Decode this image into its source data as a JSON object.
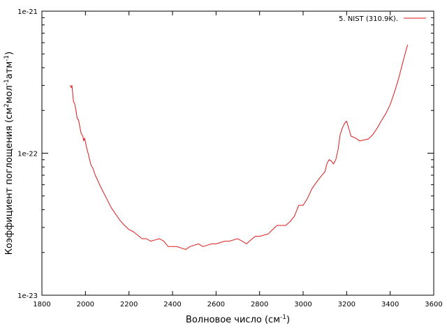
{
  "chart_data": {
    "type": "line",
    "title": "",
    "xlabel_main": "Волновое число (см",
    "xlabel_sup": "-1",
    "xlabel_end": ")",
    "ylabel_main": "Коэффициент поглощения (см",
    "ylabel_sup1": "2",
    "ylabel_mid": "мол",
    "ylabel_sup2": "-1",
    "ylabel_mid2": "атм",
    "ylabel_sup3": "-1",
    "ylabel_end": ")",
    "xlim": [
      1800,
      3600
    ],
    "ylim": [
      1e-23,
      1e-21
    ],
    "yscale": "log",
    "xticks": [
      1800,
      2000,
      2200,
      2400,
      2600,
      2800,
      3000,
      3200,
      3400,
      3600
    ],
    "yticks": [
      {
        "value": 1e-23,
        "label": "1e-23"
      },
      {
        "value": 1e-22,
        "label": "1e-22"
      },
      {
        "value": 1e-21,
        "label": "1e-21"
      }
    ],
    "grid": false,
    "legend_position": "top-right",
    "series": [
      {
        "name": "5. NIST (310.9K).",
        "color": "#dd1a1a",
        "x": [
          1930,
          1935,
          1938,
          1945,
          1950,
          1958,
          1962,
          1968,
          1972,
          1980,
          1988,
          1992,
          1996,
          2000,
          2005,
          2012,
          2018,
          2025,
          2035,
          2045,
          2055,
          2065,
          2080,
          2100,
          2120,
          2140,
          2160,
          2180,
          2200,
          2220,
          2240,
          2260,
          2280,
          2300,
          2320,
          2340,
          2360,
          2380,
          2400,
          2420,
          2440,
          2460,
          2480,
          2500,
          2520,
          2540,
          2560,
          2580,
          2600,
          2620,
          2640,
          2660,
          2680,
          2700,
          2720,
          2740,
          2760,
          2780,
          2800,
          2820,
          2840,
          2860,
          2880,
          2900,
          2920,
          2940,
          2960,
          2980,
          3000,
          3020,
          3040,
          3060,
          3080,
          3100,
          3110,
          3120,
          3130,
          3140,
          3150,
          3160,
          3170,
          3180,
          3190,
          3200,
          3220,
          3240,
          3260,
          3280,
          3300,
          3320,
          3340,
          3360,
          3380,
          3400,
          3420,
          3440,
          3460,
          3480
        ],
        "y": [
          3e-22,
          2.9e-22,
          3e-22,
          2.3e-22,
          2.25e-22,
          1.95e-22,
          1.75e-22,
          1.72e-22,
          1.6e-22,
          1.38e-22,
          1.32e-22,
          1.22e-22,
          1.28e-22,
          1.2e-22,
          1.1e-22,
          1e-22,
          9.2e-23,
          8.3e-23,
          7.8e-23,
          7e-23,
          6.5e-23,
          6e-23,
          5.4e-23,
          4.7e-23,
          4.1e-23,
          3.7e-23,
          3.35e-23,
          3.1e-23,
          2.9e-23,
          2.8e-23,
          2.65e-23,
          2.5e-23,
          2.5e-23,
          2.4e-23,
          2.45e-23,
          2.5e-23,
          2.4e-23,
          2.2e-23,
          2.2e-23,
          2.2e-23,
          2.15e-23,
          2.1e-23,
          2.2e-23,
          2.25e-23,
          2.3e-23,
          2.2e-23,
          2.25e-23,
          2.3e-23,
          2.3e-23,
          2.35e-23,
          2.4e-23,
          2.4e-23,
          2.45e-23,
          2.5e-23,
          2.4e-23,
          2.3e-23,
          2.45e-23,
          2.6e-23,
          2.6e-23,
          2.65e-23,
          2.7e-23,
          2.9e-23,
          3.1e-23,
          3.1e-23,
          3.1e-23,
          3.3e-23,
          3.6e-23,
          4.3e-23,
          4.3e-23,
          4.8e-23,
          5.6e-23,
          6.2e-23,
          6.8e-23,
          7.4e-23,
          8.5e-23,
          9e-23,
          8.8e-23,
          8.4e-23,
          9e-23,
          1.05e-22,
          1.35e-22,
          1.5e-22,
          1.62e-22,
          1.68e-22,
          1.32e-22,
          1.28e-22,
          1.22e-22,
          1.24e-22,
          1.26e-22,
          1.35e-22,
          1.5e-22,
          1.7e-22,
          1.9e-22,
          2.2e-22,
          2.7e-22,
          3.4e-22,
          4.5e-22,
          5.8e-22
        ]
      }
    ]
  }
}
